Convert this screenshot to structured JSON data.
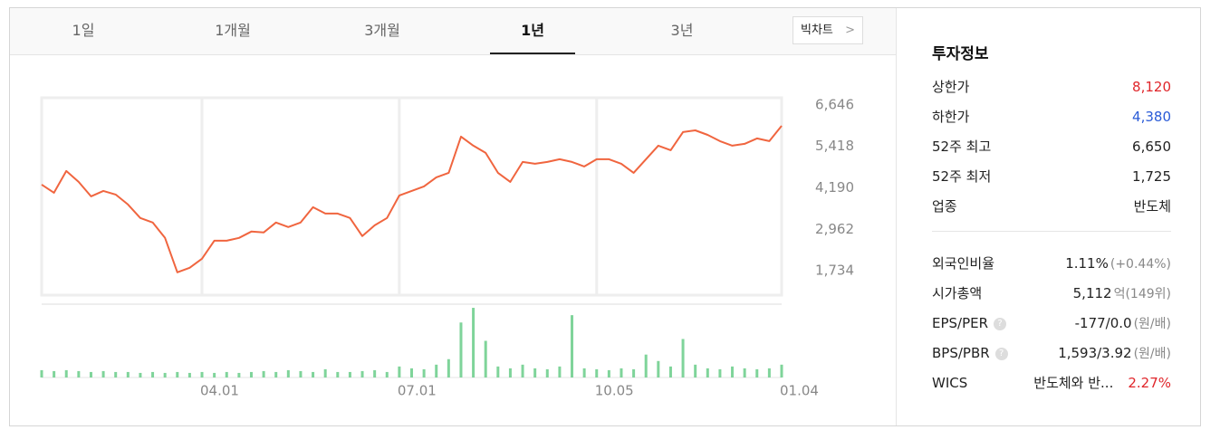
{
  "tabs": [
    {
      "label": "1일",
      "active": false
    },
    {
      "label": "1개월",
      "active": false
    },
    {
      "label": "3개월",
      "active": false
    },
    {
      "label": "1년",
      "active": true
    },
    {
      "label": "3년",
      "active": false
    }
  ],
  "big_chart_button": "빅차트",
  "chart_data": {
    "type": "line",
    "color": "#f0653f",
    "grid": true,
    "categories": [
      null,
      null,
      null,
      null,
      null,
      null,
      null,
      null,
      null,
      null,
      null,
      null,
      null,
      "04.01",
      null,
      null,
      null,
      null,
      null,
      null,
      null,
      null,
      null,
      null,
      null,
      null,
      null,
      null,
      null,
      "07.01",
      null,
      null,
      null,
      null,
      null,
      null,
      null,
      null,
      null,
      null,
      null,
      null,
      null,
      null,
      null,
      "10.05",
      null,
      null,
      null,
      null,
      null,
      null,
      null,
      null,
      null,
      null,
      null,
      null,
      null,
      null,
      "01.04"
    ],
    "values": [
      4287,
      4045,
      4689,
      4367,
      3938,
      4099,
      3992,
      3697,
      3295,
      3161,
      2705,
      1686,
      1820,
      2088,
      2624,
      2624,
      2705,
      2893,
      2866,
      3161,
      3027,
      3161,
      3616,
      3429,
      3429,
      3295,
      2759,
      3080,
      3295,
      3965,
      4099,
      4233,
      4501,
      4635,
      5708,
      5440,
      5225,
      4635,
      4367,
      4957,
      4903,
      4957,
      5037,
      4957,
      4823,
      5037,
      5037,
      4903,
      4635,
      5037,
      5440,
      5305,
      5842,
      5895,
      5761,
      5574,
      5440,
      5493,
      5654,
      5574,
      6029
    ],
    "ylim": [
      1010,
      6860
    ],
    "yticks": [
      {
        "value": 6646,
        "label": "6,646"
      },
      {
        "value": 5418,
        "label": "5,418"
      },
      {
        "value": 4190,
        "label": "4,190"
      },
      {
        "value": 2962,
        "label": "2,962"
      },
      {
        "value": 1734,
        "label": "1,734"
      }
    ],
    "volume": {
      "color": "#7fd49a",
      "ylim": [
        0,
        80
      ],
      "values": [
        8,
        7,
        8,
        7,
        6,
        7,
        6,
        6,
        5,
        6,
        5,
        6,
        5,
        6,
        5,
        6,
        5,
        6,
        7,
        6,
        8,
        7,
        6,
        9,
        6,
        6,
        7,
        8,
        6,
        12,
        10,
        9,
        14,
        20,
        60,
        76,
        40,
        12,
        10,
        14,
        10,
        9,
        12,
        68,
        10,
        9,
        8,
        10,
        9,
        25,
        18,
        12,
        42,
        14,
        10,
        9,
        12,
        10,
        9,
        10,
        14
      ]
    }
  },
  "info": {
    "title": "투자정보",
    "rows": [
      {
        "label": "상한가",
        "value": "8,120",
        "color": "#e0262b"
      },
      {
        "label": "하한가",
        "value": "4,380",
        "color": "#2a5bd7"
      },
      {
        "label": "52주 최고",
        "value": "6,650",
        "color": "#222222"
      },
      {
        "label": "52주 최저",
        "value": "1,725",
        "color": "#222222"
      },
      {
        "label": "업종",
        "value": "반도체",
        "color": "#222222"
      }
    ],
    "rows2": [
      {
        "label": "외국인비율",
        "value": "1.11%",
        "note": "(+0.44%)"
      },
      {
        "label": "시가총액",
        "value": "5,112",
        "note": "억(149위)"
      },
      {
        "label": "EPS/PER",
        "help": "?",
        "value": "-177/0.0",
        "note": "(원/배)"
      },
      {
        "label": "BPS/PBR",
        "help": "?",
        "value": "1,593/3.92",
        "note": "(원/배)"
      },
      {
        "label": "WICS",
        "value": "반도체와 반...",
        "note": "2.27%",
        "note_color": "#e0262b"
      }
    ]
  }
}
